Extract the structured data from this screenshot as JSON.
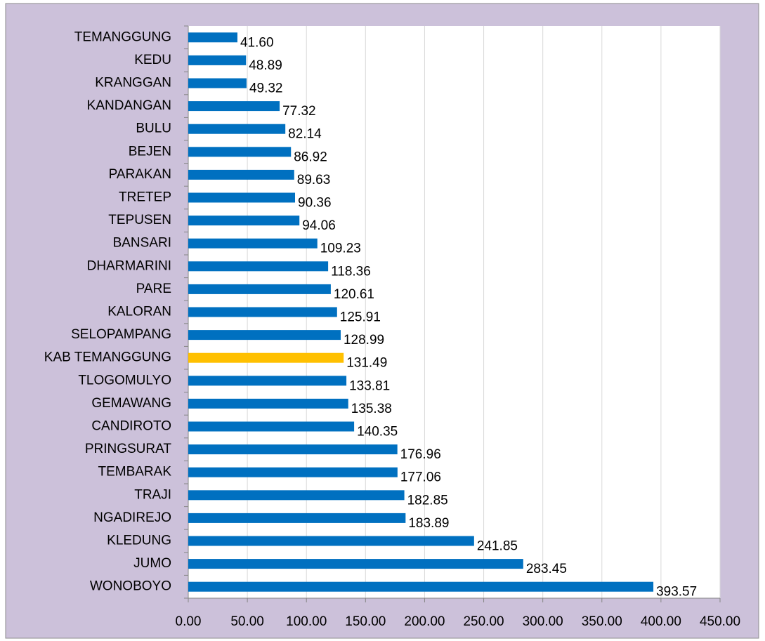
{
  "chart_data": {
    "type": "bar",
    "orientation": "horizontal",
    "categories": [
      "TEMANGGUNG",
      "KEDU",
      "KRANGGAN",
      "KANDANGAN",
      "BULU",
      "BEJEN",
      "PARAKAN",
      "TRETEP",
      "TEPUSEN",
      "BANSARI",
      "DHARMARINI",
      "PARE",
      "KALORAN",
      "SELOPAMPANG",
      "KAB TEMANGGUNG",
      "TLOGOMULYO",
      "GEMAWANG",
      "CANDIROTO",
      "PRINGSURAT",
      "TEMBARAK",
      "TRAJI",
      "NGADIREJO",
      "KLEDUNG",
      "JUMO",
      "WONOBOYO"
    ],
    "values": [
      41.6,
      48.89,
      49.32,
      77.32,
      82.14,
      86.92,
      89.63,
      90.36,
      94.06,
      109.23,
      118.36,
      120.61,
      125.91,
      128.99,
      131.49,
      133.81,
      135.38,
      140.35,
      176.96,
      177.06,
      182.85,
      183.89,
      241.85,
      283.45,
      393.57
    ],
    "value_labels": [
      "41.60",
      "48.89",
      "49.32",
      "77.32",
      "82.14",
      "86.92",
      "89.63",
      "90.36",
      "94.06",
      "109.23",
      "118.36",
      "120.61",
      "125.91",
      "128.99",
      "131.49",
      "133.81",
      "135.38",
      "140.35",
      "176.96",
      "177.06",
      "182.85",
      "183.89",
      "241.85",
      "283.45",
      "393.57"
    ],
    "colors": [
      "#0070c0",
      "#0070c0",
      "#0070c0",
      "#0070c0",
      "#0070c0",
      "#0070c0",
      "#0070c0",
      "#0070c0",
      "#0070c0",
      "#0070c0",
      "#0070c0",
      "#0070c0",
      "#0070c0",
      "#0070c0",
      "#ffc000",
      "#0070c0",
      "#0070c0",
      "#0070c0",
      "#0070c0",
      "#0070c0",
      "#0070c0",
      "#0070c0",
      "#0070c0",
      "#0070c0",
      "#0070c0"
    ],
    "xlim": [
      0,
      450
    ],
    "xticks": [
      {
        "value": 0,
        "label": "0.00"
      },
      {
        "value": 50,
        "label": "50.00"
      },
      {
        "value": 100,
        "label": "100.00"
      },
      {
        "value": 150,
        "label": "150.00"
      },
      {
        "value": 200,
        "label": "200.00"
      },
      {
        "value": 250,
        "label": "250.00"
      },
      {
        "value": 300,
        "label": "300.00"
      },
      {
        "value": 350,
        "label": "350.00"
      },
      {
        "value": 400,
        "label": "400.00"
      },
      {
        "value": 450,
        "label": "450.00"
      }
    ],
    "grid": true
  }
}
